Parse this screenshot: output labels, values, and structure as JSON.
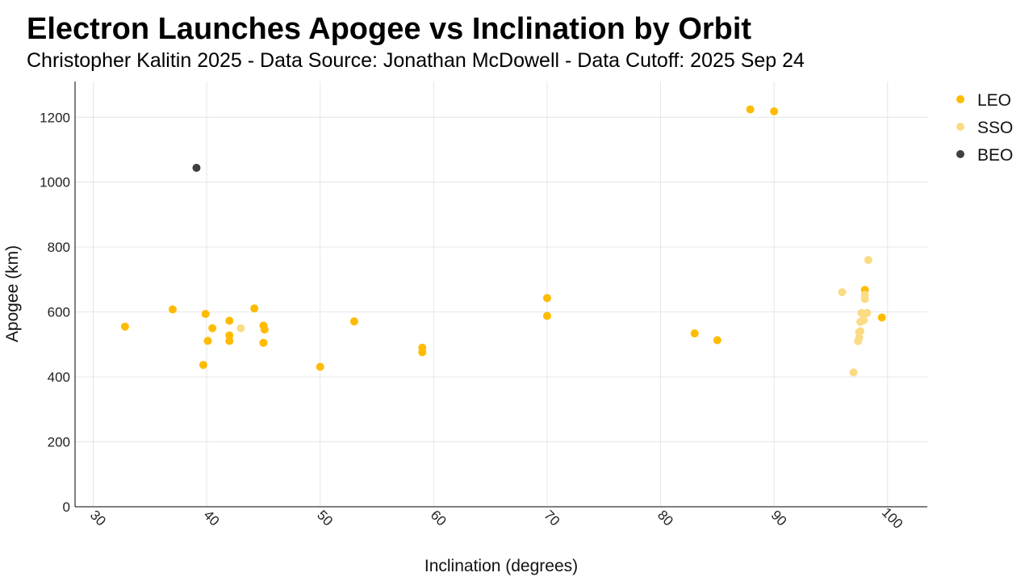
{
  "chart_data": {
    "type": "scatter",
    "title": "Electron Launches Apogee vs Inclination by Orbit",
    "subtitle": "Christopher Kalitin 2025 - Data Source: Jonathan McDowell - Data Cutoff: 2025 Sep 24",
    "xlabel": "Inclination (degrees)",
    "ylabel": "Apogee (km)",
    "xlim": [
      28.4,
      103.5
    ],
    "ylim": [
      0,
      1310
    ],
    "xticks": [
      30,
      40,
      50,
      60,
      70,
      80,
      90,
      100
    ],
    "yticks": [
      0,
      200,
      400,
      600,
      800,
      1000,
      1200
    ],
    "grid": true,
    "legend_position": "right",
    "series": [
      {
        "name": "LEO",
        "color": "#FFBB00",
        "points": [
          [
            32.8,
            555
          ],
          [
            37.0,
            608
          ],
          [
            39.7,
            437
          ],
          [
            39.9,
            594
          ],
          [
            40.1,
            511
          ],
          [
            40.5,
            550
          ],
          [
            42.0,
            573
          ],
          [
            42.0,
            528
          ],
          [
            42.0,
            511
          ],
          [
            44.2,
            611
          ],
          [
            45.0,
            558
          ],
          [
            45.1,
            546
          ],
          [
            45.0,
            505
          ],
          [
            50.0,
            431
          ],
          [
            53.0,
            571
          ],
          [
            59.0,
            490
          ],
          [
            59.0,
            476
          ],
          [
            70.0,
            643
          ],
          [
            70.0,
            588
          ],
          [
            83.0,
            534
          ],
          [
            85.0,
            513
          ],
          [
            87.9,
            1224
          ],
          [
            90.0,
            1218
          ],
          [
            98.0,
            668
          ],
          [
            99.5,
            583
          ]
        ]
      },
      {
        "name": "SSO",
        "color": "#FBDB84",
        "points": [
          [
            43.0,
            550
          ],
          [
            96.0,
            661
          ],
          [
            98.3,
            760
          ],
          [
            97.0,
            414
          ],
          [
            97.4,
            510
          ],
          [
            97.5,
            521
          ],
          [
            97.5,
            538
          ],
          [
            97.6,
            541
          ],
          [
            97.6,
            570
          ],
          [
            97.7,
            597
          ],
          [
            97.8,
            573
          ],
          [
            98.0,
            653
          ],
          [
            98.0,
            640
          ],
          [
            98.2,
            597
          ],
          [
            97.9,
            575
          ]
        ]
      },
      {
        "name": "BEO",
        "color": "#404040",
        "points": [
          [
            39.1,
            1044
          ]
        ]
      }
    ]
  }
}
